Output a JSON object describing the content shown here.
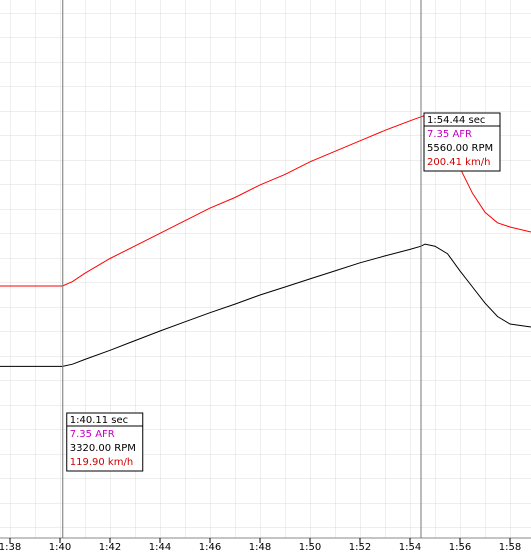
{
  "chart_data": {
    "type": "line",
    "xlim": [
      97.6,
      118.84
    ],
    "xticks": [
      {
        "value": 98,
        "label": "1:38"
      },
      {
        "value": 100,
        "label": "1:40"
      },
      {
        "value": 102,
        "label": "1:42"
      },
      {
        "value": 104,
        "label": "1:44"
      },
      {
        "value": 106,
        "label": "1:46"
      },
      {
        "value": 108,
        "label": "1:48"
      },
      {
        "value": 110,
        "label": "1:50"
      },
      {
        "value": 112,
        "label": "1:52"
      },
      {
        "value": 114,
        "label": "1:54"
      },
      {
        "value": 116,
        "label": "1:56"
      },
      {
        "value": 118,
        "label": "1:58"
      }
    ],
    "ylim": [
      0,
      256
    ],
    "y2lim": [
      120,
      10150
    ],
    "series": [
      {
        "color": "#ff0000",
        "x": [
          97.6,
          100.1,
          100.5,
          101,
          102,
          103,
          104,
          105,
          106,
          107,
          108,
          109,
          110,
          111,
          112,
          113,
          114,
          114.44,
          114.7,
          115,
          115.5,
          116,
          116.5,
          117,
          117.5,
          118,
          118.84
        ],
        "values": [
          119.9,
          119.9,
          122,
          126,
          133,
          139,
          145,
          151,
          157,
          162,
          168,
          173,
          179,
          184,
          189,
          194,
          198.5,
          200.41,
          201.5,
          199,
          190,
          176,
          164,
          155,
          150,
          148,
          145.6
        ]
      },
      {
        "color": "#000000",
        "axis": "y2",
        "x": [
          97.6,
          100.1,
          100.5,
          101,
          102,
          103,
          104,
          105,
          106,
          107,
          108,
          109,
          110,
          111,
          112,
          113,
          114,
          114.44,
          114.6,
          115,
          115.5,
          116,
          116.5,
          117,
          117.5,
          118,
          118.84
        ],
        "values": [
          3320,
          3320,
          3360,
          3450,
          3620,
          3800,
          3980,
          4150,
          4320,
          4480,
          4650,
          4800,
          4950,
          5100,
          5250,
          5380,
          5500,
          5560,
          5600,
          5560,
          5420,
          5100,
          4800,
          4500,
          4250,
          4110,
          4054
        ]
      }
    ],
    "cursors": [
      {
        "x": 100.11,
        "time": "1:40.11 sec",
        "afr": "7.35 AFR",
        "rpm": "3320.00 RPM",
        "speed": "119.90 km/h"
      },
      {
        "x": 114.44,
        "time": "1:54.44 sec",
        "afr": "7.35 AFR",
        "rpm": "5560.00 RPM",
        "speed": "200.41 km/h"
      }
    ]
  }
}
